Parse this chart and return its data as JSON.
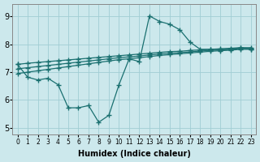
{
  "bg_color": "#cce8ec",
  "grid_color": "#a0cdd4",
  "line_color": "#1a7070",
  "xlabel": "Humidex (Indice chaleur)",
  "xlim": [
    -0.5,
    23.5
  ],
  "ylim": [
    4.75,
    9.45
  ],
  "xticks": [
    0,
    1,
    2,
    3,
    4,
    5,
    6,
    7,
    8,
    9,
    10,
    11,
    12,
    13,
    14,
    15,
    16,
    17,
    18,
    19,
    20,
    21,
    22,
    23
  ],
  "yticks": [
    5,
    6,
    7,
    8,
    9
  ],
  "zigzag": {
    "x": [
      0,
      1,
      2,
      3,
      4,
      5,
      6,
      7,
      8,
      9,
      10,
      11,
      12,
      13,
      14,
      15,
      16,
      17,
      18,
      19,
      20,
      21,
      22,
      23
    ],
    "y": [
      7.28,
      6.82,
      6.72,
      6.78,
      6.55,
      5.72,
      5.72,
      5.8,
      5.2,
      5.45,
      6.55,
      7.48,
      7.38,
      9.02,
      8.82,
      8.72,
      8.52,
      8.08,
      7.82,
      7.82,
      7.82,
      7.82,
      7.88,
      7.82
    ]
  },
  "trend1": {
    "x": [
      0,
      1,
      2,
      3,
      4,
      5,
      6,
      7,
      8,
      9,
      10,
      11,
      12,
      13,
      14,
      15,
      16,
      17,
      18,
      19,
      20,
      21,
      22,
      23
    ],
    "y": [
      7.28,
      7.32,
      7.35,
      7.38,
      7.41,
      7.44,
      7.47,
      7.5,
      7.53,
      7.56,
      7.59,
      7.62,
      7.65,
      7.68,
      7.71,
      7.74,
      7.75,
      7.78,
      7.8,
      7.82,
      7.84,
      7.86,
      7.88,
      7.88
    ]
  },
  "trend2": {
    "x": [
      0,
      1,
      2,
      3,
      4,
      5,
      6,
      7,
      8,
      9,
      10,
      11,
      12,
      13,
      14,
      15,
      16,
      17,
      18,
      19,
      20,
      21,
      22,
      23
    ],
    "y": [
      7.12,
      7.16,
      7.2,
      7.24,
      7.28,
      7.32,
      7.36,
      7.4,
      7.44,
      7.48,
      7.52,
      7.55,
      7.58,
      7.62,
      7.65,
      7.68,
      7.7,
      7.73,
      7.76,
      7.78,
      7.8,
      7.82,
      7.85,
      7.85
    ]
  },
  "trend3": {
    "x": [
      0,
      1,
      2,
      3,
      4,
      5,
      6,
      7,
      8,
      9,
      10,
      11,
      12,
      13,
      14,
      15,
      16,
      17,
      18,
      19,
      20,
      21,
      22,
      23
    ],
    "y": [
      6.95,
      7.0,
      7.05,
      7.1,
      7.15,
      7.2,
      7.25,
      7.3,
      7.35,
      7.4,
      7.45,
      7.48,
      7.52,
      7.56,
      7.6,
      7.63,
      7.66,
      7.69,
      7.72,
      7.75,
      7.77,
      7.79,
      7.82,
      7.82
    ]
  }
}
